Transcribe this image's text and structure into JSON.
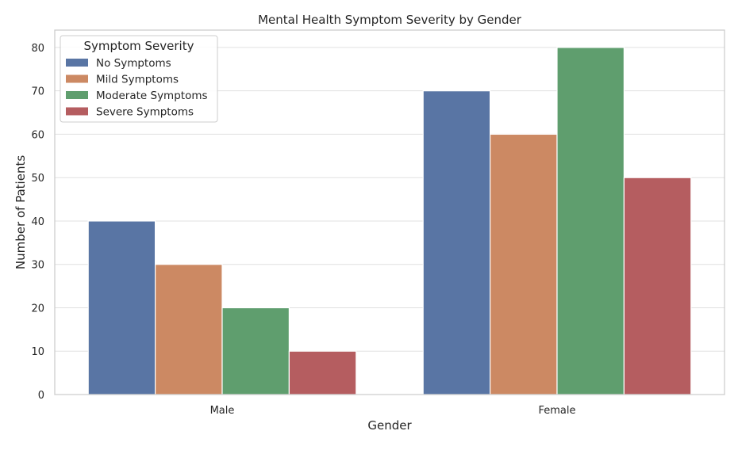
{
  "chart_data": {
    "type": "bar",
    "title": "Mental Health Symptom Severity by Gender",
    "xlabel": "Gender",
    "ylabel": "Number of Patients",
    "categories": [
      "Male",
      "Female"
    ],
    "ylim": [
      0,
      84
    ],
    "yticks": [
      0,
      10,
      20,
      30,
      40,
      50,
      60,
      70,
      80
    ],
    "grid": true,
    "legend": {
      "title": "Symptom Severity",
      "placement": "top-left"
    },
    "series": [
      {
        "name": "No Symptoms",
        "color": "#5975a4",
        "values": [
          40,
          70
        ]
      },
      {
        "name": "Mild Symptoms",
        "color": "#cc8963",
        "values": [
          30,
          60
        ]
      },
      {
        "name": "Moderate Symptoms",
        "color": "#5f9e6e",
        "values": [
          20,
          80
        ]
      },
      {
        "name": "Severe Symptoms",
        "color": "#b55d60",
        "values": [
          10,
          50
        ]
      }
    ]
  }
}
